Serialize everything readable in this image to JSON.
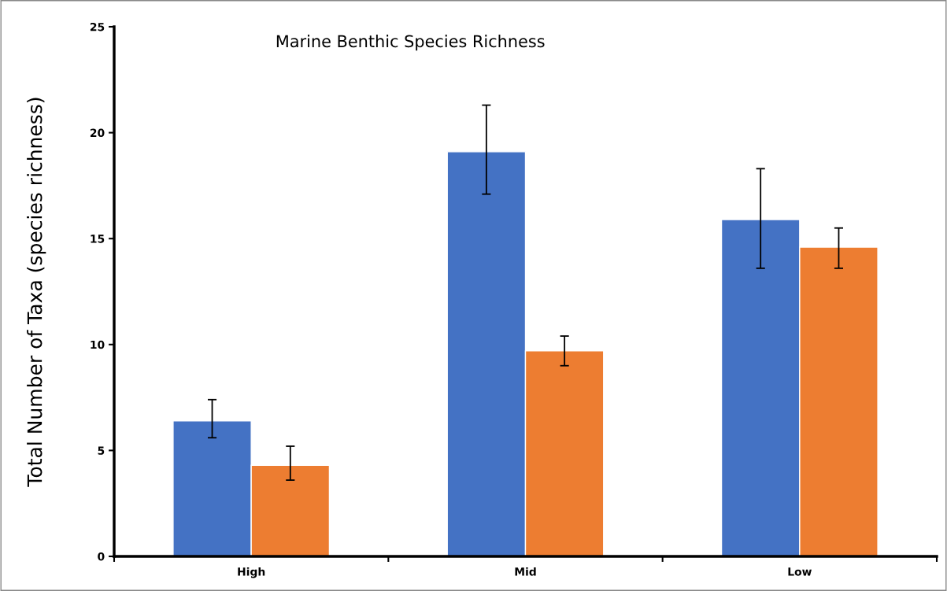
{
  "chart_data": {
    "type": "bar",
    "title": "Marine Benthic Species Richness",
    "ylabel": "Total Number of Taxa (species richness)",
    "categories": [
      "High",
      "Mid",
      "Low"
    ],
    "series": [
      {
        "color": "#4472c4",
        "values": [
          6.4,
          19.1,
          15.9
        ],
        "errors": [
          [
            5.6,
            7.4
          ],
          [
            17.1,
            21.3
          ],
          [
            13.6,
            18.3
          ]
        ]
      },
      {
        "color": "#ed7d31",
        "values": [
          4.3,
          9.7,
          14.6
        ],
        "errors": [
          [
            3.6,
            5.2
          ],
          [
            9.0,
            10.4
          ],
          [
            13.6,
            15.5
          ]
        ]
      }
    ],
    "ylim": [
      0,
      25
    ],
    "yticks": [
      0,
      5,
      10,
      15,
      20,
      25
    ],
    "grid": false,
    "legend": false
  }
}
